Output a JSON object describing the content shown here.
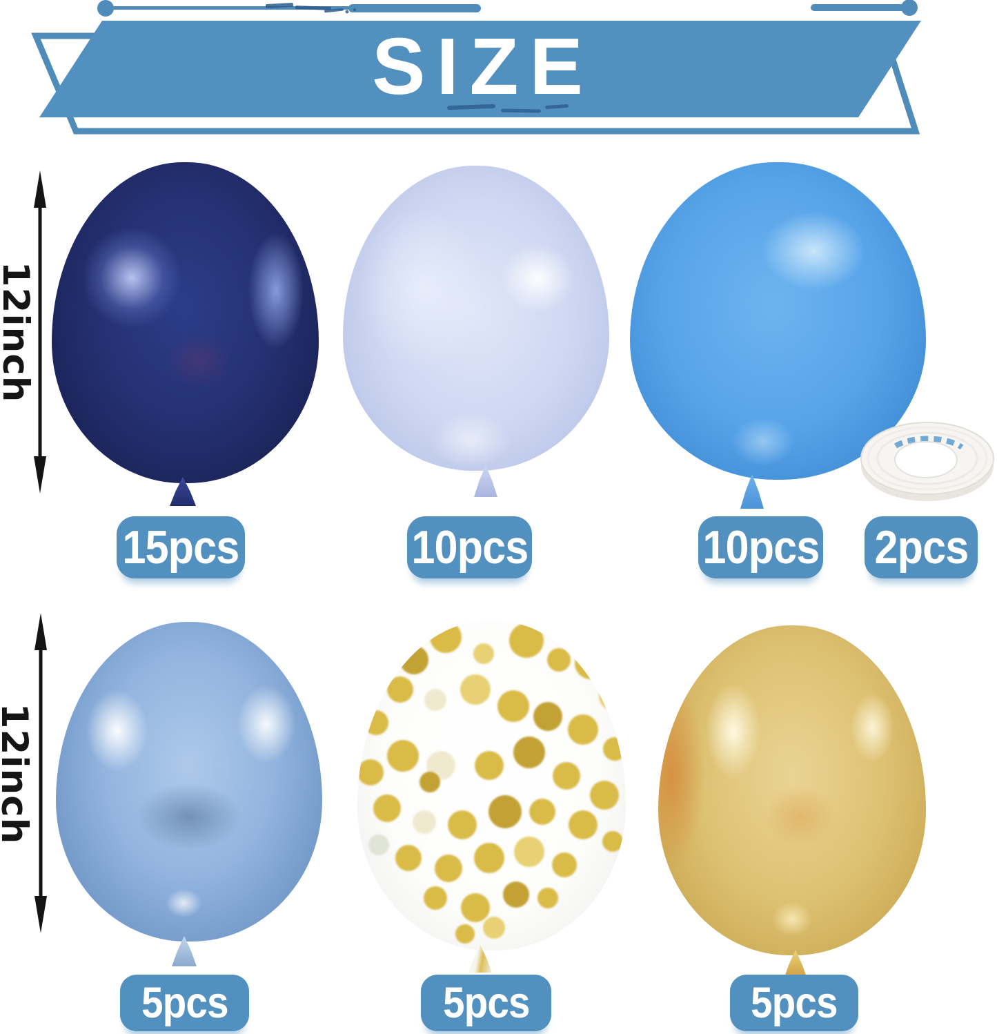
{
  "banner": {
    "title": "SIZE",
    "ribbon_color": "#5291bf",
    "outline_color": "#4f8cba",
    "grunge_color": "#2d5d8e",
    "text_color": "#ffffff"
  },
  "measurement": {
    "arrow_color": "#141414",
    "text_color": "#151515"
  },
  "rows": [
    {
      "size_label": "12inch",
      "items": [
        {
          "name": "navy-blue-balloon",
          "type": "balloon",
          "color": "#253173",
          "count_label": "15pcs"
        },
        {
          "name": "light-periwinkle-balloon",
          "type": "balloon",
          "color": "#cfd8f2",
          "count_label": "10pcs"
        },
        {
          "name": "blue-balloon",
          "type": "balloon",
          "color": "#58a4e9",
          "count_label": "10pcs"
        },
        {
          "name": "white-ribbon-roll",
          "type": "ribbon-roll",
          "color": "#f6f5f2",
          "print_color": "#5a9bd0",
          "count_label": "2pcs"
        }
      ]
    },
    {
      "size_label": "12inch",
      "items": [
        {
          "name": "metallic-light-blue-balloon",
          "type": "balloon",
          "color": "#92b4de",
          "count_label": "5pcs"
        },
        {
          "name": "gold-confetti-balloon",
          "type": "balloon",
          "color": "#ffffff",
          "count_label": "5pcs"
        },
        {
          "name": "metallic-gold-balloon",
          "type": "balloon",
          "color": "#ddc172",
          "count_label": "5pcs"
        }
      ]
    }
  ],
  "label_style": {
    "background": "#5291bf",
    "text_color": "#ffffff"
  },
  "confetti": {
    "palette": [
      "#d8b83f",
      "#c09d2b",
      "#e6cf6d",
      "#efe9cd",
      "#dfe3d4"
    ],
    "dots": [
      [
        33,
        5,
        46,
        0
      ],
      [
        21,
        12,
        42,
        1
      ],
      [
        47,
        10,
        30,
        2
      ],
      [
        63,
        6,
        50,
        0
      ],
      [
        75,
        12,
        34,
        0
      ],
      [
        87,
        13,
        46,
        0
      ],
      [
        95,
        23,
        40,
        2
      ],
      [
        16,
        21,
        38,
        0
      ],
      [
        7,
        31,
        36,
        0
      ],
      [
        29,
        24,
        32,
        3
      ],
      [
        44,
        21,
        44,
        2
      ],
      [
        58,
        26,
        46,
        0
      ],
      [
        71,
        29,
        42,
        1
      ],
      [
        84,
        33,
        44,
        0
      ],
      [
        96,
        39,
        34,
        0
      ],
      [
        5,
        46,
        38,
        0
      ],
      [
        17,
        41,
        46,
        0
      ],
      [
        31,
        44,
        42,
        3
      ],
      [
        27,
        49,
        30,
        1
      ],
      [
        49,
        44,
        42,
        0
      ],
      [
        64,
        40,
        46,
        1
      ],
      [
        78,
        47,
        40,
        0
      ],
      [
        92,
        53,
        42,
        0
      ],
      [
        11,
        57,
        40,
        0
      ],
      [
        25,
        61,
        34,
        3
      ],
      [
        39,
        62,
        42,
        0
      ],
      [
        55,
        58,
        48,
        1
      ],
      [
        69,
        58,
        38,
        0
      ],
      [
        84,
        62,
        42,
        0
      ],
      [
        95,
        67,
        30,
        0
      ],
      [
        19,
        72,
        38,
        0
      ],
      [
        34,
        75,
        40,
        0
      ],
      [
        49,
        72,
        44,
        0
      ],
      [
        64,
        70,
        44,
        2
      ],
      [
        77,
        74,
        36,
        0
      ],
      [
        8,
        68,
        30,
        4
      ],
      [
        29,
        84,
        34,
        0
      ],
      [
        44,
        87,
        42,
        0
      ],
      [
        59,
        83,
        38,
        1
      ],
      [
        71,
        84,
        30,
        0
      ],
      [
        51,
        93,
        32,
        2
      ],
      [
        40,
        95,
        28,
        0
      ]
    ]
  }
}
